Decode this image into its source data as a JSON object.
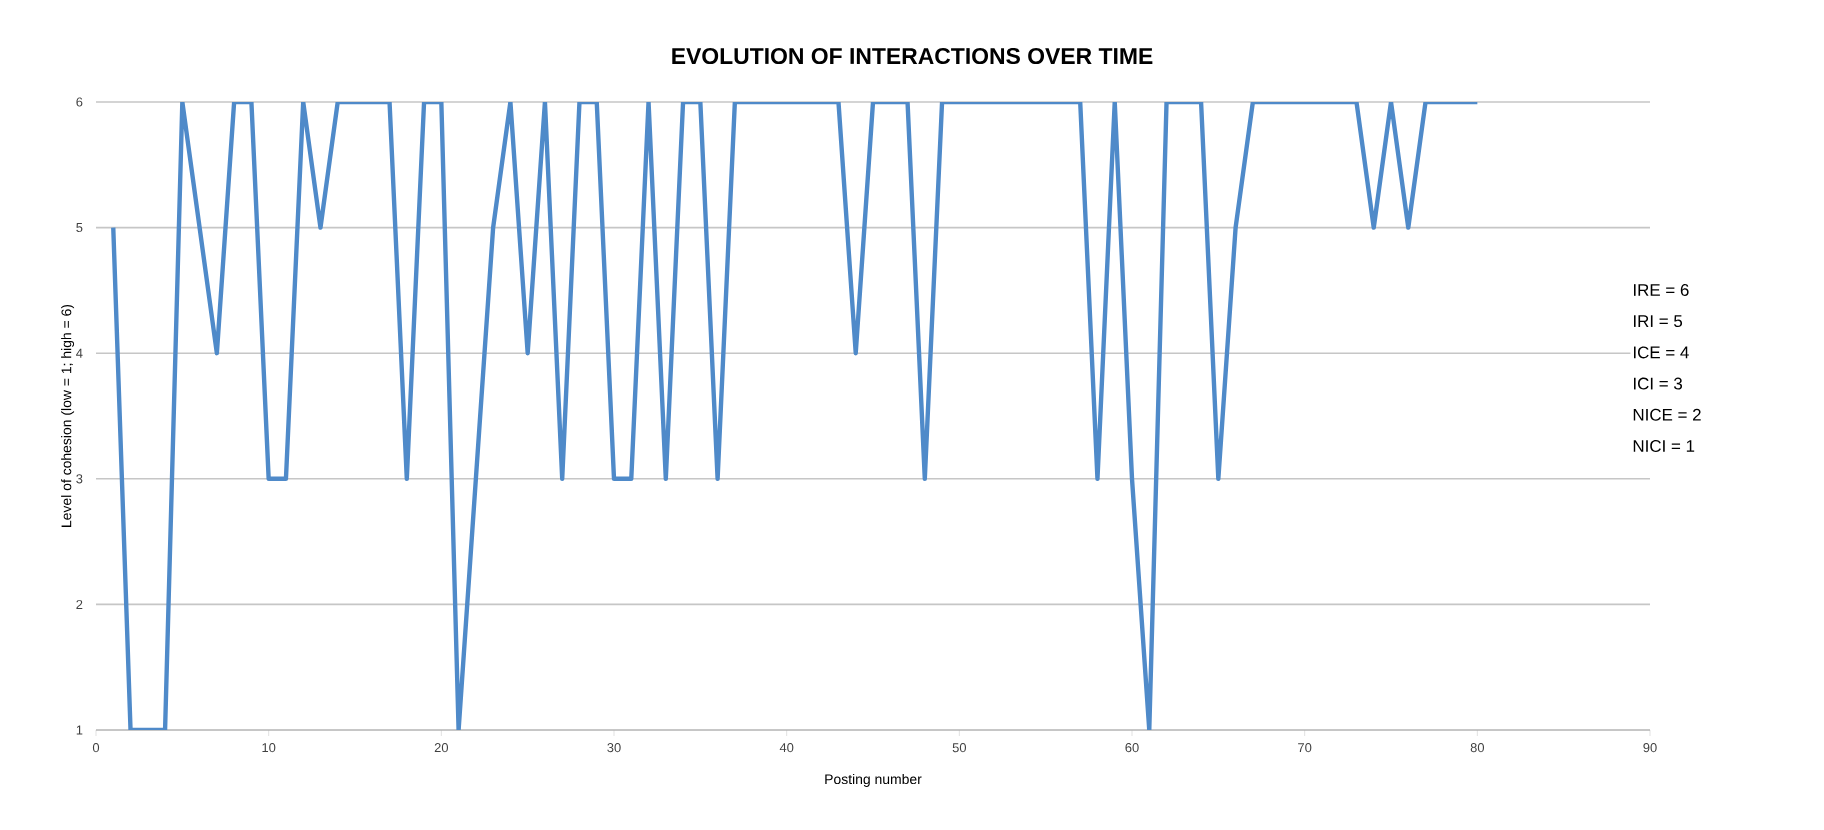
{
  "chart_data": {
    "type": "line",
    "title": "EVOLUTION OF INTERACTIONS OVER TIME",
    "xlabel": "Posting number",
    "ylabel": "Level of cohesion (low = 1; high = 6)",
    "x": [
      1,
      2,
      3,
      4,
      5,
      6,
      7,
      8,
      9,
      10,
      11,
      12,
      13,
      14,
      15,
      16,
      17,
      18,
      19,
      20,
      21,
      22,
      23,
      24,
      25,
      26,
      27,
      28,
      29,
      30,
      31,
      32,
      33,
      34,
      35,
      36,
      37,
      38,
      39,
      40,
      41,
      42,
      43,
      44,
      45,
      46,
      47,
      48,
      49,
      50,
      51,
      52,
      53,
      54,
      55,
      56,
      57,
      58,
      59,
      60,
      61,
      62,
      63,
      64,
      65,
      66,
      67,
      68,
      69,
      70,
      71,
      72,
      73,
      74,
      75,
      76,
      77,
      78,
      79,
      80
    ],
    "series": [
      {
        "color": "#4f8ac9",
        "values": [
          5,
          1,
          1,
          1,
          6,
          5,
          4,
          6,
          6,
          3,
          3,
          6,
          5,
          6,
          6,
          6,
          6,
          3,
          6,
          6,
          1,
          3,
          5,
          6,
          4,
          6,
          3,
          6,
          6,
          3,
          3,
          6,
          3,
          6,
          6,
          3,
          6,
          6,
          6,
          6,
          6,
          6,
          6,
          4,
          6,
          6,
          6,
          3,
          6,
          6,
          6,
          6,
          6,
          6,
          6,
          6,
          6,
          3,
          6,
          3,
          1,
          6,
          6,
          6,
          3,
          5,
          6,
          6,
          6,
          6,
          6,
          6,
          6,
          5,
          6,
          5,
          6,
          6,
          6,
          6
        ]
      }
    ],
    "xlim": [
      0,
      90
    ],
    "xticks": [
      0,
      10,
      20,
      30,
      40,
      50,
      60,
      70,
      80,
      90
    ],
    "ylim": [
      1,
      6
    ],
    "yticks": [
      1,
      2,
      3,
      4,
      5,
      6
    ],
    "grid": "y",
    "marker": "none",
    "line_style": "solid",
    "annotations": [
      "IRE = 6",
      "IRI  = 5",
      "ICE = 4",
      "ICI  = 3",
      "NICE = 2",
      "NICI  = 1"
    ]
  }
}
